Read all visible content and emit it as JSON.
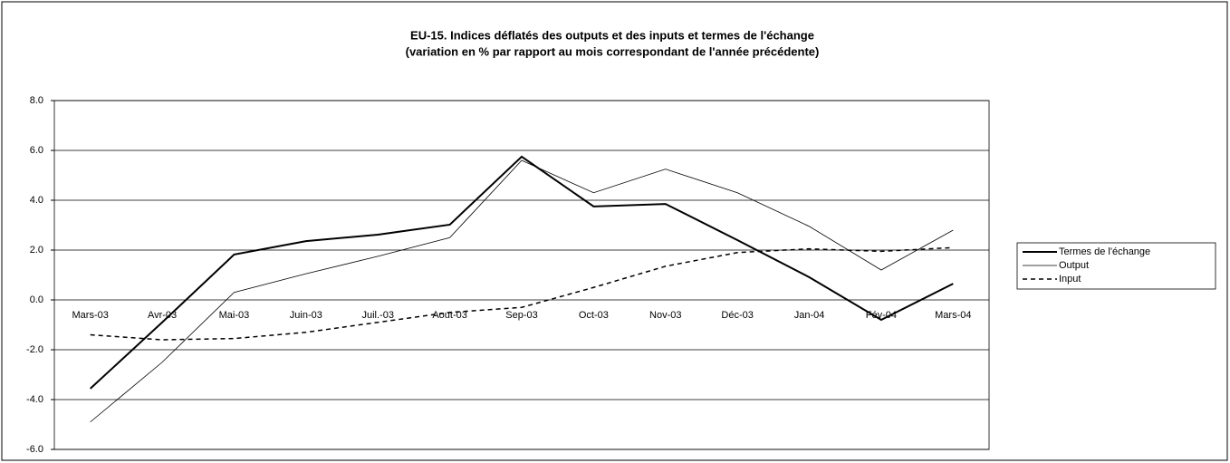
{
  "chart_data": {
    "type": "line",
    "title": "EU-15. Indices déflatés des outputs et des inputs et termes de l'échange",
    "subtitle": "(variation en % par rapport au mois correspondant de l'année précédente)",
    "categories": [
      "Mars-03",
      "Avr-03",
      "Mai-03",
      "Juin-03",
      "Juil.-03",
      "Aout-03",
      "Sep-03",
      "Oct-03",
      "Nov-03",
      "Déc-03",
      "Jan-04",
      "Fév-04",
      "Mars-04"
    ],
    "series": [
      {
        "name": "Termes de l'échange",
        "color": "#000000",
        "style": "thick",
        "values": [
          -3.56,
          -0.9,
          1.82,
          2.36,
          2.62,
          3.02,
          5.75,
          3.75,
          3.85,
          2.4,
          0.91,
          -0.8,
          0.65
        ]
      },
      {
        "name": "Output",
        "color": "#000000",
        "style": "thin",
        "values": [
          -4.9,
          -2.5,
          0.3,
          1.05,
          1.75,
          2.5,
          5.6,
          4.3,
          5.25,
          4.3,
          2.95,
          1.2,
          2.8
        ]
      },
      {
        "name": "Input",
        "color": "#000000",
        "style": "dashed",
        "values": [
          -1.4,
          -1.6,
          -1.55,
          -1.3,
          -0.9,
          -0.5,
          -0.3,
          0.5,
          1.35,
          1.9,
          2.05,
          1.95,
          2.1
        ]
      }
    ],
    "ylim": [
      -6,
      8
    ],
    "yticks": [
      {
        "value": -6,
        "label": "-6.0"
      },
      {
        "value": -4,
        "label": "-4.0"
      },
      {
        "value": -2,
        "label": "-2.0"
      },
      {
        "value": 0,
        "label": "0.0"
      },
      {
        "value": 2,
        "label": "2.0"
      },
      {
        "value": 4,
        "label": "4.0"
      },
      {
        "value": 6,
        "label": "6.0"
      },
      {
        "value": 8,
        "label": "8.0"
      }
    ],
    "grid": true,
    "legend": "right"
  }
}
